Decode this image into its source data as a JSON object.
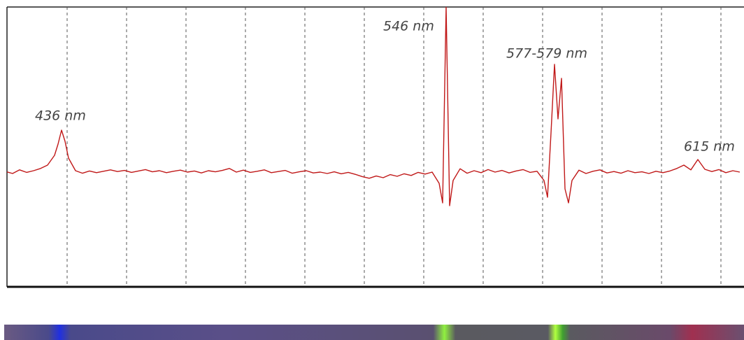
{
  "chart_data": {
    "type": "line",
    "annotations": [
      "436 nm",
      "546 nm",
      "577-579 nm",
      "615 nm"
    ],
    "xlim": [
      420.4,
      631.2
    ],
    "ylim": [
      0,
      100
    ],
    "xticks": [
      437.6,
      454.6,
      471.6,
      488.6,
      505.6,
      522.6,
      539.6,
      556.6,
      573.6,
      590.6,
      607.6,
      624.6
    ],
    "grid": true,
    "series": [
      {
        "color": "#c01818",
        "x": [
          420,
          422,
          424,
          426,
          428,
          430,
          432,
          434,
          435,
          436,
          437,
          438,
          440,
          442,
          444,
          446,
          448,
          450,
          452,
          454,
          456,
          458,
          460,
          462,
          464,
          466,
          468,
          470,
          472,
          474,
          476,
          478,
          480,
          482,
          484,
          486,
          488,
          490,
          492,
          494,
          496,
          498,
          500,
          502,
          504,
          506,
          508,
          510,
          512,
          514,
          516,
          518,
          520,
          522,
          524,
          526,
          528,
          530,
          532,
          534,
          536,
          538,
          540,
          542,
          544,
          545,
          546,
          547,
          548,
          550,
          552,
          554,
          556,
          558,
          560,
          562,
          564,
          566,
          568,
          570,
          572,
          574,
          575,
          576,
          577,
          578,
          579,
          580,
          581,
          582,
          584,
          586,
          588,
          590,
          592,
          594,
          596,
          598,
          600,
          602,
          604,
          606,
          608,
          610,
          612,
          614,
          616,
          618,
          620,
          622,
          624,
          626,
          628,
          630
        ],
        "values": [
          41.2,
          40.5,
          41.8,
          40.9,
          41.5,
          42.3,
          43.5,
          47,
          51,
          56,
          52,
          46,
          41.5,
          40.6,
          41.4,
          40.8,
          41.3,
          41.8,
          41.2,
          41.6,
          40.9,
          41.4,
          41.9,
          41.1,
          41.5,
          40.8,
          41.3,
          41.7,
          41.0,
          41.4,
          40.7,
          41.5,
          41.1,
          41.6,
          42.3,
          41.0,
          41.7,
          40.9,
          41.3,
          41.8,
          40.8,
          41.2,
          41.6,
          40.6,
          41.1,
          41.5,
          40.7,
          41.0,
          40.5,
          41.1,
          40.4,
          40.9,
          40.2,
          39.4,
          38.8,
          39.6,
          39.0,
          40.1,
          39.5,
          40.4,
          39.8,
          40.9,
          40.3,
          41.0,
          37,
          30,
          100,
          29,
          38,
          42.2,
          40.6,
          41.5,
          40.8,
          41.9,
          41.0,
          41.6,
          40.7,
          41.4,
          41.9,
          40.9,
          41.3,
          38,
          32,
          55,
          79.5,
          60,
          74.5,
          35,
          30,
          38,
          41.7,
          40.5,
          41.3,
          41.8,
          40.7,
          41.2,
          40.6,
          41.5,
          40.8,
          41.1,
          40.5,
          41.3,
          40.8,
          41.4,
          42.3,
          43.5,
          41.8,
          45.5,
          42.0,
          41.2,
          41.9,
          40.8,
          41.5,
          41.0
        ]
      }
    ]
  }
}
